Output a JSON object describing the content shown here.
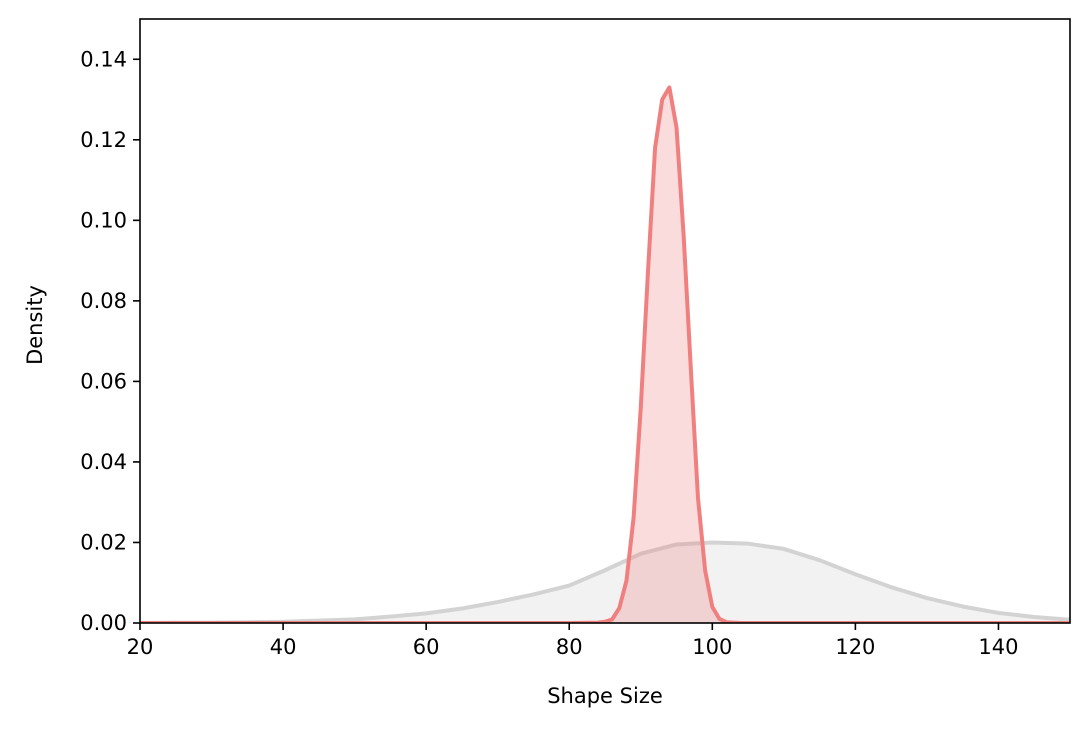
{
  "chart_data": {
    "type": "area",
    "xlabel": "Shape Size",
    "ylabel": "Density",
    "xlim": [
      20,
      150
    ],
    "ylim": [
      0,
      0.15
    ],
    "xticks": [
      20,
      40,
      60,
      80,
      100,
      120,
      140
    ],
    "yticks": [
      0.0,
      0.02,
      0.04,
      0.06,
      0.08,
      0.1,
      0.12,
      0.14
    ],
    "xtick_labels": [
      "20",
      "40",
      "60",
      "80",
      "100",
      "120",
      "140"
    ],
    "ytick_labels": [
      "0.00",
      "0.02",
      "0.04",
      "0.06",
      "0.08",
      "0.10",
      "0.12",
      "0.14"
    ],
    "grid": false,
    "legend": "none",
    "series": [
      {
        "id": "broad",
        "line_color": "#d3d3d3",
        "fill_color": "#d3d3d3",
        "fill_opacity": 0.3,
        "x": [
          20,
          25,
          30,
          35,
          40,
          45,
          50,
          55,
          60,
          65,
          70,
          75,
          80,
          85,
          90,
          95,
          100,
          105,
          110,
          115,
          120,
          125,
          130,
          135,
          140,
          145,
          150
        ],
        "values": [
          0.0,
          0.0001,
          0.0001,
          0.0002,
          0.0003,
          0.0006,
          0.0009,
          0.0016,
          0.0024,
          0.0036,
          0.0052,
          0.0071,
          0.0093,
          0.0131,
          0.0172,
          0.0195,
          0.02,
          0.0197,
          0.0184,
          0.0156,
          0.0121,
          0.0089,
          0.0062,
          0.0041,
          0.0025,
          0.0015,
          0.0008
        ]
      },
      {
        "id": "narrow",
        "line_color": "#f08080",
        "fill_color": "#f08080",
        "fill_opacity": 0.28,
        "x": [
          20,
          80,
          84,
          85,
          86,
          87,
          88,
          89,
          90,
          91,
          92,
          93,
          94,
          95,
          96,
          97,
          98,
          99,
          100,
          101,
          102,
          103,
          104,
          105,
          106,
          110,
          150
        ],
        "values": [
          0,
          0,
          0.0001,
          0.0003,
          0.0009,
          0.0037,
          0.0105,
          0.0262,
          0.0535,
          0.087,
          0.118,
          0.13,
          0.133,
          0.123,
          0.096,
          0.063,
          0.031,
          0.013,
          0.004,
          0.001,
          0.0002,
          0.0001,
          0,
          0,
          0,
          0,
          0
        ]
      }
    ]
  }
}
